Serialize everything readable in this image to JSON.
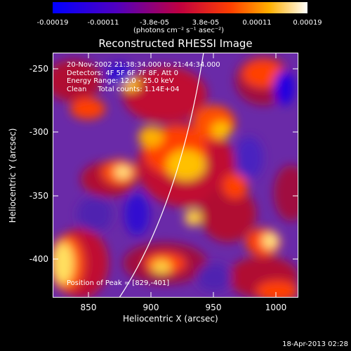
{
  "colorbar": {
    "ticks": [
      "-0.00019",
      "-0.00011",
      "-3.8e-05",
      "3.8e-05",
      "0.00011",
      "0.00019"
    ],
    "units": "(photons cm⁻² s⁻¹ asec⁻²)"
  },
  "title": "Reconstructed RHESSI Image",
  "info": {
    "time": "20-Nov-2002 21:38:34.000 to 21:44:34.000",
    "detectors": "Detectors: 4F 5F 6F 7F 8F, Att 0",
    "energy": "Energy Range: 12.0 - 25.0 keV",
    "clean": "Clean     Total counts: 1.14E+04"
  },
  "peak": "Position of Peak = [829,-401]",
  "axes": {
    "xlabel": "Heliocentric X (arcsec)",
    "ylabel": "Heliocentric Y (arcsec)",
    "xticks": [
      "850",
      "900",
      "950",
      "1000"
    ],
    "yticks": [
      "-250",
      "-300",
      "-350",
      "-400"
    ]
  },
  "date": "18-Apr-2013 02:28",
  "colors": {
    "low": "#0000ff",
    "mid": "#6a2aa8",
    "high": "#ffffff"
  }
}
